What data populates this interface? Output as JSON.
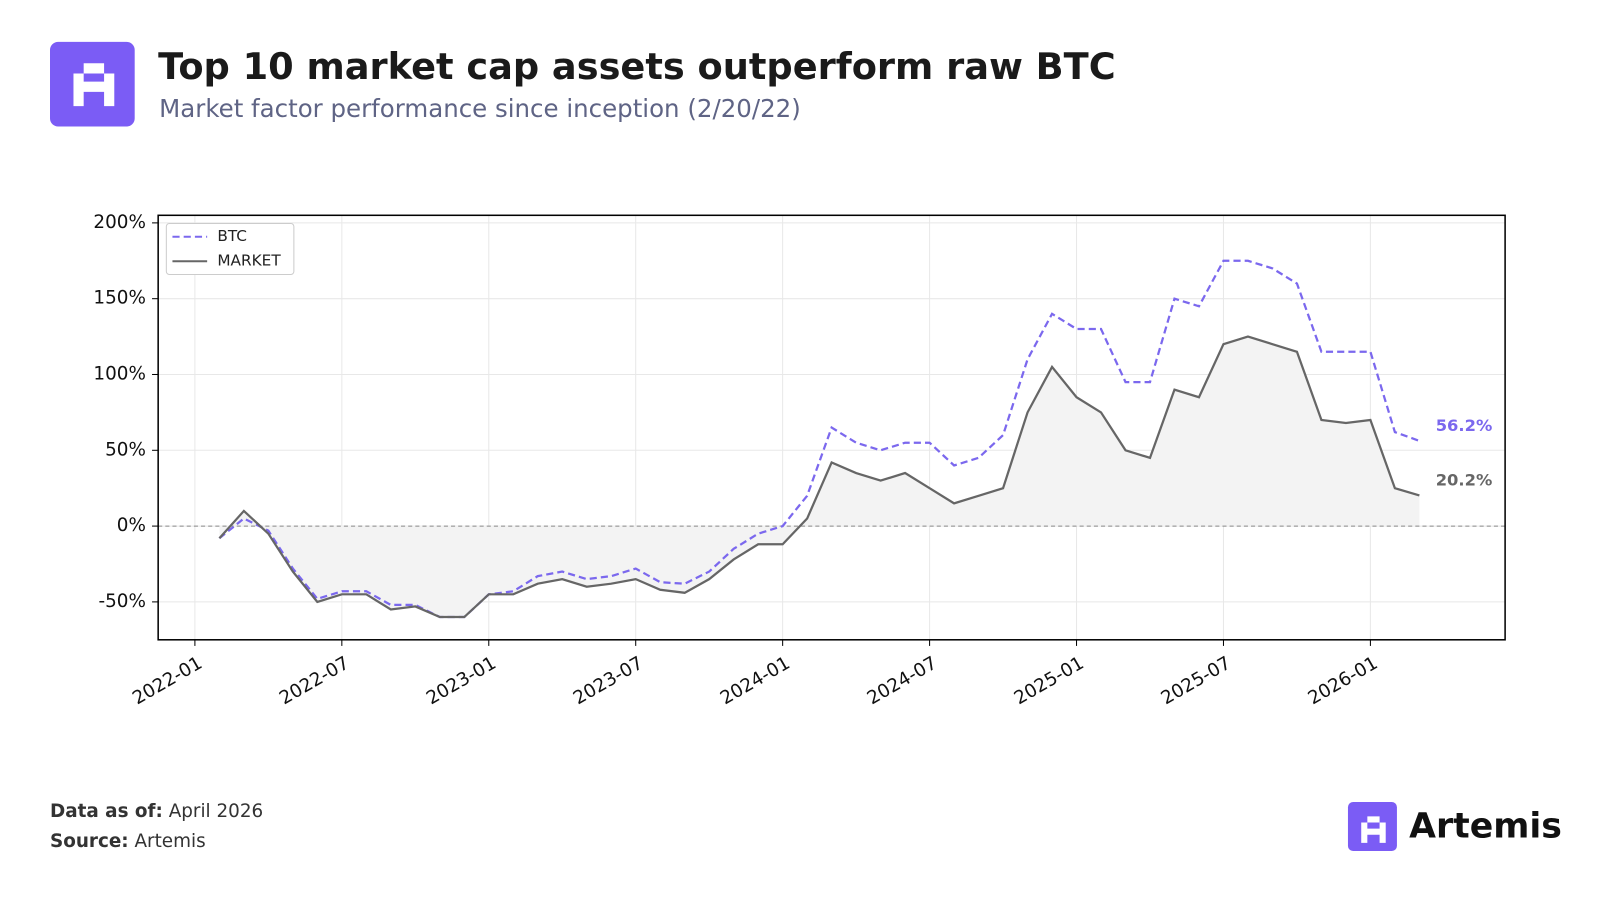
{
  "header": {
    "title": "Top 10 market cap assets outperform raw BTC",
    "subtitle": "Market factor performance since inception (2/20/22)"
  },
  "chart_data": {
    "type": "line",
    "x": [
      "2022-02",
      "2022-03",
      "2022-04",
      "2022-05",
      "2022-06",
      "2022-07",
      "2022-08",
      "2022-09",
      "2022-10",
      "2022-11",
      "2022-12",
      "2023-01",
      "2023-02",
      "2023-03",
      "2023-04",
      "2023-05",
      "2023-06",
      "2023-07",
      "2023-08",
      "2023-09",
      "2023-10",
      "2023-11",
      "2023-12",
      "2024-01",
      "2024-02",
      "2024-03",
      "2024-04",
      "2024-05",
      "2024-06",
      "2024-07",
      "2024-08",
      "2024-09",
      "2024-10",
      "2024-11",
      "2024-12",
      "2025-01",
      "2025-02",
      "2025-03",
      "2025-04",
      "2025-05",
      "2025-06",
      "2025-07",
      "2025-08",
      "2025-09",
      "2025-10",
      "2025-11",
      "2025-12",
      "2026-01",
      "2026-02",
      "2026-03"
    ],
    "series": [
      {
        "name": "BTC",
        "color": "#7b68ee",
        "dash": true,
        "values": [
          -8,
          5,
          -3,
          -28,
          -48,
          -43,
          -43,
          -52,
          -52,
          -60,
          -60,
          -45,
          -43,
          -33,
          -30,
          -35,
          -33,
          -28,
          -37,
          -38,
          -30,
          -15,
          -5,
          0,
          20,
          65,
          55,
          50,
          55,
          55,
          40,
          45,
          60,
          110,
          140,
          130,
          130,
          95,
          95,
          150,
          145,
          175,
          175,
          170,
          160,
          115,
          115,
          115,
          62,
          56.2
        ],
        "value_labels": [
          null,
          null,
          null,
          null,
          null,
          null,
          null,
          null,
          null,
          null,
          null,
          null,
          null,
          null,
          null,
          null,
          null,
          null,
          null,
          null,
          null,
          null,
          null,
          null,
          null,
          null,
          null,
          null,
          null,
          null,
          null,
          null,
          null,
          null,
          null,
          null,
          null,
          null,
          null,
          null,
          null,
          null,
          null,
          null,
          null,
          null,
          null,
          null,
          null,
          "56.2%"
        ]
      },
      {
        "name": "MARKET",
        "color": "#666666",
        "dash": false,
        "fill": "#f3f3f3",
        "values": [
          -8,
          10,
          -5,
          -30,
          -50,
          -45,
          -45,
          -55,
          -53,
          -60,
          -60,
          -45,
          -45,
          -38,
          -35,
          -40,
          -38,
          -35,
          -42,
          -44,
          -35,
          -22,
          -12,
          -12,
          5,
          42,
          35,
          30,
          35,
          25,
          15,
          20,
          25,
          75,
          105,
          85,
          75,
          50,
          45,
          90,
          85,
          120,
          125,
          120,
          115,
          70,
          68,
          70,
          25,
          20.2
        ],
        "value_labels": [
          null,
          null,
          null,
          null,
          null,
          null,
          null,
          null,
          null,
          null,
          null,
          null,
          null,
          null,
          null,
          null,
          null,
          null,
          null,
          null,
          null,
          null,
          null,
          null,
          null,
          null,
          null,
          null,
          null,
          null,
          null,
          null,
          null,
          null,
          null,
          null,
          null,
          null,
          null,
          null,
          null,
          null,
          null,
          null,
          null,
          null,
          null,
          null,
          null,
          "20.2%"
        ]
      }
    ],
    "xlim": [
      "2021-12",
      "2026-07"
    ],
    "xticks": [
      "2022-01",
      "2022-07",
      "2023-01",
      "2023-07",
      "2024-01",
      "2024-07",
      "2025-01",
      "2025-07",
      "2026-01"
    ],
    "ylim": [
      -75,
      205
    ],
    "yticks": [
      {
        "value": -50,
        "label": "-50%"
      },
      {
        "value": 0,
        "label": "0%"
      },
      {
        "value": 50,
        "label": "50%"
      },
      {
        "value": 100,
        "label": "100%"
      },
      {
        "value": 150,
        "label": "150%"
      },
      {
        "value": 200,
        "label": "200%"
      }
    ],
    "grid": true,
    "legend": "upper left"
  },
  "footer": {
    "date_label": "Data as of:",
    "date": "April 2026",
    "source_label": "Source:",
    "source": "Artemis",
    "brand": "Artemis"
  }
}
